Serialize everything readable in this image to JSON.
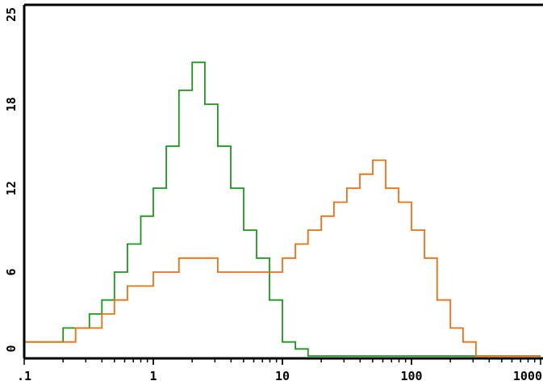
{
  "chart_data": {
    "type": "line",
    "title": "",
    "xlabel": "",
    "ylabel": "",
    "x_scale": "log",
    "xlim": [
      0.1,
      1000
    ],
    "ylim": [
      0,
      25
    ],
    "x_tick_labels": [
      ".1",
      "1",
      "10",
      "100",
      "1000"
    ],
    "x_tick_values": [
      0.1,
      1,
      10,
      100,
      1000
    ],
    "y_tick_labels": [
      "0",
      "6",
      "12",
      "18",
      "25"
    ],
    "y_tick_values": [
      0,
      6,
      12,
      18,
      25
    ],
    "grid": false,
    "legend": "none",
    "series": [
      {
        "color": "#1a9a1a",
        "x": [
          0.1,
          0.13,
          0.16,
          0.2,
          0.25,
          0.32,
          0.4,
          0.5,
          0.63,
          0.8,
          1.0,
          1.26,
          1.58,
          2.0,
          2.51,
          3.16,
          3.98,
          5.01,
          6.31,
          7.94,
          10,
          12.6,
          15.8,
          20,
          50,
          100,
          300,
          1000
        ],
        "values": [
          1,
          1,
          1,
          2,
          2,
          3,
          4,
          6,
          8,
          10,
          12,
          15,
          19,
          21,
          18,
          15,
          12,
          9,
          7,
          4,
          1,
          0.5,
          0,
          0,
          0,
          0,
          0,
          0
        ]
      },
      {
        "color": "#f07010",
        "x": [
          0.1,
          0.13,
          0.16,
          0.2,
          0.25,
          0.32,
          0.4,
          0.5,
          0.63,
          0.8,
          1.0,
          1.26,
          1.58,
          2.0,
          2.51,
          3.16,
          3.98,
          5.01,
          6.31,
          7.94,
          10,
          12.6,
          15.8,
          20,
          25.1,
          31.6,
          39.8,
          50.1,
          63.1,
          79.4,
          100,
          126,
          158,
          200,
          251,
          316,
          400,
          1000
        ],
        "values": [
          1,
          1,
          1,
          1,
          2,
          2,
          3,
          4,
          5,
          5,
          6,
          6,
          7,
          7,
          7,
          6,
          6,
          6,
          6,
          6,
          7,
          8,
          9,
          10,
          11,
          12,
          13,
          14,
          12,
          11,
          9,
          7,
          4,
          2,
          1,
          0,
          0,
          0
        ]
      }
    ]
  }
}
